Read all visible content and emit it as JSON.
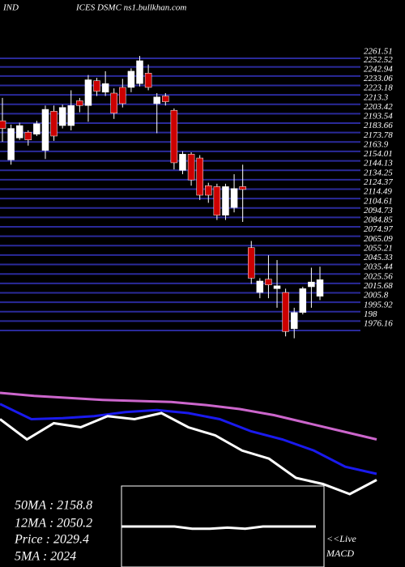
{
  "chart_data": [
    {
      "type": "candlestick",
      "title": "IND",
      "subtitle": "ICES DSMC ns1.bullkhan.com",
      "open": [
        2196,
        2155,
        2178,
        2184,
        2182,
        2165,
        2206,
        2191,
        2191,
        2217,
        2212,
        2238,
        2226,
        2225,
        2231,
        2231,
        2235,
        2246,
        2214,
        2222,
        2207,
        2144,
        2161,
        2157,
        2128,
        2127,
        2097,
        2105,
        2127,
        2063,
        2016,
        2030,
        2020,
        2016,
        1978,
        1995,
        2022,
        2012
      ],
      "high": [
        2220,
        2192,
        2194,
        2186,
        2196,
        2212,
        2212,
        2213,
        2228,
        2220,
        2244,
        2241,
        2248,
        2230,
        2240,
        2251,
        2264,
        2255,
        2225,
        2225,
        2209,
        2164,
        2163,
        2160,
        2131,
        2130,
        2130,
        2140,
        2150,
        2070,
        2031,
        2055,
        2050,
        2020,
        2000,
        2022,
        2042,
        2043
      ],
      "low": [
        2174,
        2150,
        2176,
        2170,
        2180,
        2156,
        2175,
        2188,
        2186,
        2205,
        2195,
        2222,
        2222,
        2198,
        2210,
        2226,
        2232,
        2228,
        2183,
        2212,
        2145,
        2140,
        2128,
        2113,
        2110,
        2092,
        2092,
        2100,
        2090,
        2025,
        2010,
        2010,
        2000,
        1970,
        1968,
        1993,
        2000,
        2008
      ],
      "close": [
        2188,
        2188,
        2191,
        2176,
        2193,
        2208,
        2180,
        2210,
        2212,
        2212,
        2239,
        2227,
        2235,
        2204,
        2214,
        2248,
        2259,
        2231,
        2221,
        2216,
        2152,
        2161,
        2134,
        2118,
        2118,
        2097,
        2127,
        2125,
        2124,
        2031,
        2028,
        2024,
        2023,
        1975,
        1995,
        2020,
        2027,
        2029.4
      ],
      "up_color": "#ffffff",
      "down_color": "#cc0000",
      "grid_color": "#2a2a9a",
      "ylim": [
        1976.16,
        2261.51
      ],
      "yticks": [
        2261.51,
        2252.52,
        2242.94,
        2233.06,
        2223.18,
        2213.3,
        2203.42,
        2193.54,
        2183.66,
        2173.78,
        2163.9,
        2154.01,
        2144.13,
        2134.25,
        2124.37,
        2114.49,
        2104.61,
        2094.73,
        2084.85,
        2074.97,
        2065.09,
        2055.21,
        2045.33,
        2035.44,
        2025.56,
        2015.68,
        2005.8,
        1995.92,
        {
          "value": 1986.04,
          "label": "198"
        },
        1976.16
      ]
    },
    {
      "type": "line",
      "ylim": [
        -20,
        100
      ],
      "series": [
        {
          "name": "50MA",
          "color": "#cc66cc",
          "values": [
            88,
            85,
            83,
            81,
            80,
            79,
            76,
            72,
            66,
            58,
            50,
            42
          ]
        },
        {
          "name": "12MA",
          "color": "#1a1aee",
          "values": [
            77,
            62,
            63,
            65,
            69,
            71,
            68,
            62,
            50,
            42,
            31,
            15,
            8
          ]
        },
        {
          "name": "Price",
          "color": "#ffffff",
          "values": [
            62,
            42,
            58,
            54,
            65,
            62,
            68,
            54,
            46,
            31,
            23,
            4,
            -2,
            -12,
            2
          ]
        }
      ],
      "annotations": [
        "50MA : 2158.8",
        "12MA : 2050.2",
        "Price  : 2029.4",
        "5MA : 2024"
      ]
    },
    {
      "type": "line",
      "ylim": [
        -10,
        10
      ],
      "series": [
        {
          "name": "MACD",
          "color": "#ffffff",
          "values": [
            0,
            0,
            0,
            0,
            -2,
            -2,
            -1,
            -2,
            0,
            0,
            0,
            0
          ]
        }
      ],
      "annotations": [
        "<<Live",
        "MACD"
      ]
    }
  ]
}
